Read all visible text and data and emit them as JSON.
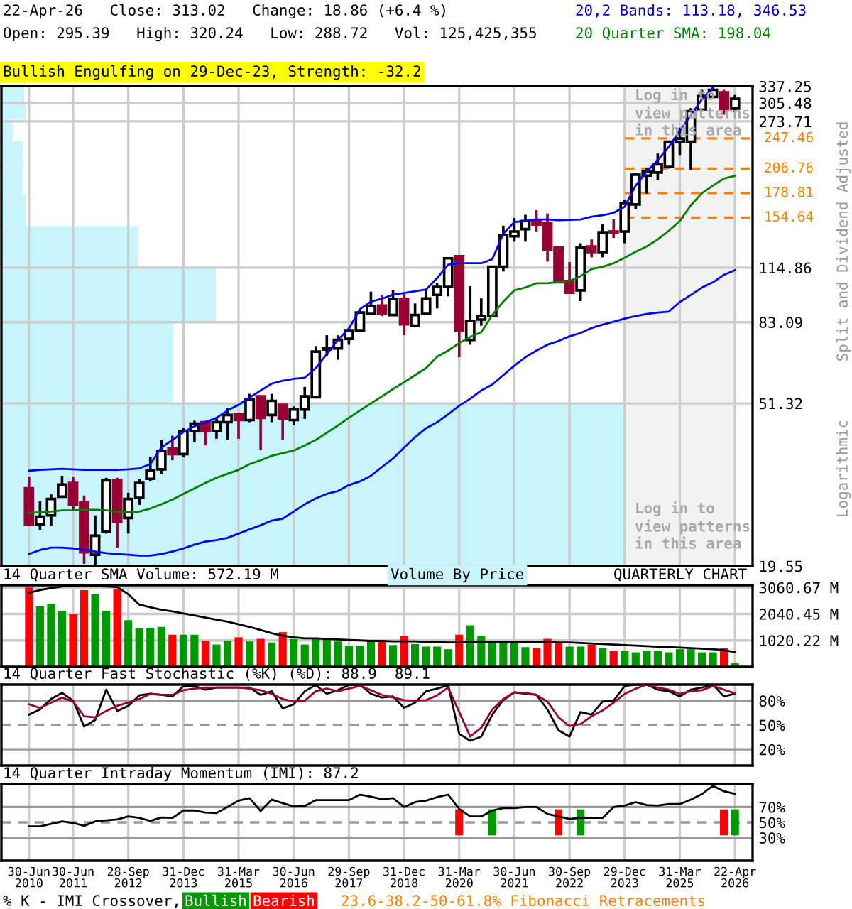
{
  "chart_data": [
    {
      "type": "candlestick",
      "log": true,
      "grid": true,
      "tick_labels": "y",
      "categories": [
        "30-Jun\n2010",
        null,
        null,
        null,
        "30-Jun\n2011",
        null,
        null,
        null,
        null,
        "28-Sep\n2012",
        null,
        null,
        null,
        null,
        "31-Dec\n2013",
        null,
        null,
        null,
        null,
        "31-Mar\n2015",
        null,
        null,
        null,
        null,
        "30-Jun\n2016",
        null,
        null,
        null,
        null,
        "29-Sep\n2017",
        null,
        null,
        null,
        null,
        "31-Dec\n2018",
        null,
        null,
        null,
        null,
        "31-Mar\n2020",
        null,
        null,
        null,
        null,
        "30-Jun\n2021",
        null,
        null,
        null,
        null,
        "30-Sep\n2022",
        null,
        null,
        null,
        null,
        "29-Dec\n2023",
        null,
        null,
        null,
        null,
        "31-Mar\n2025",
        null,
        null,
        null,
        null,
        "22-Apr\n2026"
      ],
      "ylim": [
        19.55,
        337.25
      ],
      "yticks": [
        19.55,
        51.32,
        83.09,
        114.86,
        273.71,
        305.48,
        337.25
      ],
      "ohlc": [
        [
          31.0,
          33.2,
          24.8,
          25.0
        ],
        [
          25.0,
          28.7,
          24.2,
          26.2
        ],
        [
          26.4,
          29.9,
          24.8,
          29.1
        ],
        [
          29.5,
          33.4,
          29.3,
          31.7
        ],
        [
          32.0,
          33.2,
          27.3,
          28.2
        ],
        [
          28.5,
          29.7,
          19.8,
          21.2
        ],
        [
          20.9,
          26.4,
          19.6,
          23.4
        ],
        [
          24.0,
          33.0,
          23.7,
          32.5
        ],
        [
          32.6,
          33.0,
          21.8,
          25.4
        ],
        [
          26.0,
          30.2,
          23.7,
          29.1
        ],
        [
          29.3,
          32.8,
          28.1,
          32.0
        ],
        [
          32.8,
          37.3,
          32.3,
          34.5
        ],
        [
          34.7,
          41.4,
          33.8,
          38.7
        ],
        [
          39.3,
          42.4,
          36.6,
          38.0
        ],
        [
          38.0,
          44.4,
          37.3,
          43.6
        ],
        [
          43.5,
          46.3,
          40.7,
          45.5
        ],
        [
          45.9,
          46.3,
          40.0,
          43.5
        ],
        [
          43.6,
          47.1,
          41.6,
          45.9
        ],
        [
          45.9,
          49.9,
          41.4,
          47.9
        ],
        [
          48.1,
          48.3,
          41.6,
          46.5
        ],
        [
          46.5,
          54.3,
          45.9,
          52.5
        ],
        [
          53.5,
          53.5,
          38.9,
          47.1
        ],
        [
          47.9,
          54.3,
          45.9,
          52.1
        ],
        [
          50.9,
          50.9,
          41.4,
          46.8
        ],
        [
          46.5,
          50.4,
          45.2,
          49.5
        ],
        [
          49.5,
          56.6,
          46.8,
          53.5
        ],
        [
          53.2,
          72.1,
          53.2,
          69.8
        ],
        [
          70.7,
          76.9,
          67.8,
          71.1
        ],
        [
          71.1,
          76.9,
          66.5,
          74.8
        ],
        [
          75.3,
          80.3,
          72.7,
          79.2
        ],
        [
          79.2,
          89.8,
          78.6,
          88.0
        ],
        [
          87.3,
          99.6,
          86.6,
          91.5
        ],
        [
          91.7,
          97.7,
          86.2,
          87.3
        ],
        [
          86.7,
          100.4,
          86.2,
          95.5
        ],
        [
          95.5,
          99.0,
          76.9,
          82.1
        ],
        [
          81.4,
          92.9,
          81.4,
          86.7
        ],
        [
          87.3,
          101.2,
          87.3,
          95.7
        ],
        [
          97.7,
          104.7,
          90.2,
          102.5
        ],
        [
          102.5,
          122.1,
          96.9,
          121.4
        ],
        [
          122.9,
          122.9,
          67.5,
          79.2
        ],
        [
          74.8,
          102.9,
          72.7,
          83.7
        ],
        [
          84.4,
          95.7,
          81.4,
          86.2
        ],
        [
          86.2,
          115.5,
          85.5,
          115.5
        ],
        [
          115.5,
          147.4,
          112.3,
          139.3
        ],
        [
          138.4,
          154.2,
          134.0,
          142.4
        ],
        [
          144.4,
          157.2,
          134.0,
          151.5
        ],
        [
          151.5,
          161.6,
          142.4,
          148.3
        ],
        [
          149.6,
          158.3,
          119.0,
          128.0
        ],
        [
          129.3,
          129.3,
          105.3,
          105.3
        ],
        [
          106.1,
          118.7,
          99.0,
          99.0
        ],
        [
          100.4,
          132.8,
          94.2,
          129.3
        ],
        [
          130.3,
          135.8,
          122.1,
          126.0
        ],
        [
          126.0,
          148.6,
          122.1,
          141.7
        ],
        [
          142.4,
          152.9,
          137.0,
          141.7
        ],
        [
          142.4,
          172.1,
          132.8,
          168.6
        ],
        [
          167.2,
          201.1,
          162.5,
          199.5
        ],
        [
          198.4,
          207.9,
          178.2,
          203.3
        ],
        [
          202.1,
          226.1,
          192.9,
          212.0
        ],
        [
          208.9,
          244.0,
          206.8,
          242.5
        ],
        [
          242.5,
          263.7,
          224.2,
          247.2
        ],
        [
          242.5,
          296.0,
          205.0,
          290.9
        ],
        [
          293.3,
          330.0,
          290.9,
          317.9
        ],
        [
          316.4,
          337.0,
          311.9,
          330.0
        ],
        [
          325.3,
          330.0,
          284.8,
          294.8
        ],
        [
          295.39,
          320.24,
          288.72,
          313.02
        ]
      ],
      "colors": [
        "#990033",
        "#ffffff",
        "#ffffff",
        "#ffffff",
        "#990033",
        "#990033",
        "#ffffff",
        "#ffffff",
        "#990033",
        "#ffffff",
        "#ffffff",
        "#ffffff",
        "#ffffff",
        "#990033",
        "#ffffff",
        "#ffffff",
        "#990033",
        "#ffffff",
        "#ffffff",
        "#990033",
        "#ffffff",
        "#990033",
        "#ffffff",
        "#990033",
        "#ffffff",
        "#ffffff",
        "#ffffff",
        "#ffffff",
        "#ffffff",
        "#ffffff",
        "#ffffff",
        "#ffffff",
        "#990033",
        "#ffffff",
        "#990033",
        "#ffffff",
        "#ffffff",
        "#ffffff",
        "#ffffff",
        "#990033",
        "#ffffff",
        "#ffffff",
        "#ffffff",
        "#ffffff",
        "#ffffff",
        "#ffffff",
        "#990033",
        "#990033",
        "#990033",
        "#990033",
        "#ffffff",
        "#990033",
        "#ffffff",
        "#990033",
        "#ffffff",
        "#ffffff",
        "#ffffff",
        "#ffffff",
        "#ffffff",
        "#ffffff",
        "#ffffff",
        "#ffffff",
        "#ffffff",
        "#990033",
        "#ffffff"
      ],
      "series": [
        {
          "type": "line",
          "color": "#0000ff",
          "values": [
            34.4,
            34.6,
            34.7,
            34.8,
            34.7,
            34.6,
            34.6,
            34.6,
            34.6,
            34.7,
            34.9,
            35.8,
            39.5,
            41.3,
            43.3,
            44.8,
            45.9,
            47.1,
            49.2,
            50.9,
            53.1,
            55.4,
            57.7,
            58.7,
            59.4,
            59.8,
            63.3,
            68.8,
            74.8,
            80.0,
            89.8,
            93.9,
            95.5,
            97.9,
            98.8,
            99.9,
            100.9,
            108.0,
            117.0,
            117.9,
            117.9,
            117.9,
            120.8,
            140.6,
            150.6,
            151.5,
            152.9,
            152.9,
            152.3,
            152.5,
            152.9,
            155.5,
            156.8,
            159.0,
            165.0,
            186.9,
            203.3,
            217.3,
            235.4,
            258.9,
            283.9,
            311.9,
            333.5,
            null,
            null
          ]
        },
        {
          "type": "line",
          "color": "#008000",
          "values": [
            26.8,
            26.9,
            27.0,
            27.2,
            27.2,
            27.3,
            27.3,
            27.2,
            27.0,
            26.9,
            27.0,
            27.5,
            28.2,
            29.0,
            30.0,
            31.0,
            32.0,
            33.0,
            33.8,
            34.6,
            35.8,
            36.6,
            37.6,
            38.2,
            38.8,
            40.0,
            41.3,
            43.1,
            45.0,
            47.1,
            49.2,
            51.3,
            53.5,
            55.9,
            58.2,
            60.7,
            63.3,
            67.7,
            70.2,
            73.4,
            76.1,
            78.3,
            86.7,
            93.9,
            100.4,
            102.1,
            104.7,
            104.7,
            105.5,
            106.1,
            109.2,
            113.9,
            115.5,
            117.9,
            121.8,
            126.3,
            130.3,
            135.8,
            143.0,
            151.5,
            166.4,
            178.7,
            186.9,
            195.0,
            198.04
          ]
        },
        {
          "type": "line",
          "color": "#0000ff",
          "values": [
            21.0,
            21.5,
            21.8,
            21.8,
            21.7,
            21.5,
            21.3,
            21.1,
            21.0,
            20.9,
            20.8,
            20.8,
            21.0,
            21.3,
            21.7,
            22.2,
            22.6,
            22.8,
            23.1,
            23.7,
            24.3,
            24.9,
            25.6,
            25.9,
            27.0,
            28.2,
            29.2,
            30.0,
            30.5,
            31.6,
            32.3,
            33.4,
            35.2,
            37.0,
            39.5,
            42.0,
            44.3,
            45.9,
            48.1,
            50.6,
            52.8,
            55.4,
            57.4,
            60.7,
            64.2,
            67.5,
            70.2,
            72.7,
            74.3,
            76.4,
            77.9,
            80.3,
            81.9,
            83.3,
            84.9,
            86.2,
            87.3,
            88.0,
            88.5,
            93.7,
            97.7,
            102.0,
            105.3,
            110.1,
            113.18
          ]
        }
      ],
      "ref_lines": [
        {
          "axis": "y",
          "value": 247.46,
          "label": "247.46",
          "color": "#ff8000",
          "line_style": "dashed"
        },
        {
          "axis": "y",
          "value": 206.76,
          "label": "206.76",
          "color": "#ff8000",
          "line_style": "dashed"
        },
        {
          "axis": "y",
          "value": 178.81,
          "label": "178.81",
          "color": "#ff8000",
          "line_style": "dashed"
        },
        {
          "axis": "y",
          "value": 154.64,
          "label": "154.64",
          "color": "#ff8000",
          "line_style": "dashed"
        }
      ],
      "bands": [
        {
          "axis": "x",
          "from": "29-Dec\n2023",
          "to": "22-Apr\n2026",
          "color": "#f2f2f2"
        }
      ],
      "annotations": [
        "22-Apr-26   Close: 313.02   Change: 18.86 (+6.4 %)",
        "Open: 295.39   High: 320.24   Low: 288.72   Vol: 125,425,355",
        "20,2 Bands: 113.18, 346.53",
        "20 Quarter SMA: 198.04",
        "Bullish Engulfing on 29-Dec-23, Strength: -32.2",
        "Log in to\nview patterns\nin this area",
        "Log in to\nview patterns\nin this area",
        "Split and Dividend Adjusted",
        "Logarithmic",
        "23.6-38.2-50-61.8% Fibonacci Retracements",
        "Volume By Price"
      ]
    },
    {
      "type": "bar",
      "title": "14 Quarter SMA Volume: 572.19 M",
      "grid": true,
      "tick_labels": "y",
      "categories": [
        "30-Jun\n2010",
        null,
        null,
        null,
        "30-Jun\n2011",
        null,
        null,
        null,
        null,
        "28-Sep\n2012",
        null,
        null,
        null,
        null,
        "31-Dec\n2013",
        null,
        null,
        null,
        null,
        "31-Mar\n2015",
        null,
        null,
        null,
        null,
        "30-Jun\n2016",
        null,
        null,
        null,
        null,
        "29-Sep\n2017",
        null,
        null,
        null,
        null,
        "31-Dec\n2018",
        null,
        null,
        null,
        null,
        "31-Mar\n2020",
        null,
        null,
        null,
        null,
        "30-Jun\n2021",
        null,
        null,
        null,
        null,
        "30-Sep\n2022",
        null,
        null,
        null,
        null,
        "29-Dec\n2023",
        null,
        null,
        null,
        null,
        "31-Mar\n2025",
        null,
        null,
        null,
        null,
        "22-Apr\n2026"
      ],
      "ylim": [
        0,
        3150
      ],
      "yticks": [
        {
          "value": 1020.22,
          "label": "1020.22 M"
        },
        {
          "value": 2040.45,
          "label": "2040.45 M"
        },
        {
          "value": 3060.67,
          "label": "3060.67 M"
        }
      ],
      "series": [
        {
          "type": "bar",
          "values": [
            3060,
            2340,
            2440,
            2160,
            2040,
            2960,
            2800,
            2160,
            3000,
            1800,
            1500,
            1500,
            1540,
            1240,
            1240,
            1240,
            1000,
            860,
            1000,
            1140,
            980,
            1080,
            940,
            1340,
            1080,
            860,
            1120,
            1100,
            980,
            820,
            820,
            1000,
            1000,
            840,
            1180,
            880,
            780,
            780,
            680,
            1240,
            1600,
            1180,
            940,
            940,
            940,
            760,
            720,
            1080,
            940,
            780,
            780,
            860,
            720,
            620,
            620,
            560,
            620,
            620,
            560,
            680,
            680,
            560,
            560,
            720,
            140
          ],
          "colors": [
            "#ff0000",
            "#009900",
            "#009900",
            "#009900",
            "#ff0000",
            "#ff0000",
            "#009900",
            "#009900",
            "#ff0000",
            "#009900",
            "#009900",
            "#009900",
            "#009900",
            "#ff0000",
            "#009900",
            "#009900",
            "#ff0000",
            "#009900",
            "#009900",
            "#ff0000",
            "#009900",
            "#ff0000",
            "#009900",
            "#ff0000",
            "#009900",
            "#009900",
            "#009900",
            "#009900",
            "#009900",
            "#009900",
            "#009900",
            "#009900",
            "#ff0000",
            "#009900",
            "#ff0000",
            "#009900",
            "#009900",
            "#009900",
            "#009900",
            "#ff0000",
            "#009900",
            "#009900",
            "#009900",
            "#009900",
            "#009900",
            "#009900",
            "#ff0000",
            "#ff0000",
            "#ff0000",
            "#009900",
            "#009900",
            "#ff0000",
            "#009900",
            "#ff0000",
            "#009900",
            "#009900",
            "#009900",
            "#009900",
            "#009900",
            "#009900",
            "#009900",
            "#009900",
            "#009900",
            "#ff0000",
            "#009900"
          ]
        },
        {
          "type": "line",
          "color": "#000000",
          "values": [
            2860,
            2960,
            3040,
            3100,
            3120,
            3120,
            3110,
            3100,
            3080,
            2800,
            2400,
            2300,
            2200,
            2140,
            2060,
            1980,
            1900,
            1820,
            1740,
            1640,
            1540,
            1420,
            1300,
            1200,
            1140,
            1100,
            1100,
            1080,
            1060,
            1040,
            1020,
            1000,
            1000,
            980,
            980,
            980,
            960,
            960,
            940,
            940,
            960,
            960,
            960,
            960,
            960,
            960,
            960,
            960,
            940,
            940,
            920,
            900,
            880,
            860,
            840,
            820,
            800,
            780,
            760,
            740,
            720,
            700,
            680,
            640,
            572.19
          ]
        }
      ],
      "annotations": [
        "QUARTERLY CHART"
      ]
    },
    {
      "type": "line",
      "title": "14 Quarter Fast Stochastic (%K) (%D): 88.9  89.1",
      "grid": "x",
      "tick_labels": "y",
      "categories": [
        "30-Jun\n2010",
        null,
        null,
        null,
        "30-Jun\n2011",
        null,
        null,
        null,
        null,
        "28-Sep\n2012",
        null,
        null,
        null,
        null,
        "31-Dec\n2013",
        null,
        null,
        null,
        null,
        "31-Mar\n2015",
        null,
        null,
        null,
        null,
        "30-Jun\n2016",
        null,
        null,
        null,
        null,
        "29-Sep\n2017",
        null,
        null,
        null,
        null,
        "31-Dec\n2018",
        null,
        null,
        null,
        null,
        "31-Mar\n2020",
        null,
        null,
        null,
        null,
        "30-Jun\n2021",
        null,
        null,
        null,
        null,
        "30-Sep\n2022",
        null,
        null,
        null,
        null,
        "29-Dec\n2023",
        null,
        null,
        null,
        null,
        "31-Mar\n2025",
        null,
        null,
        null,
        null,
        "22-Apr\n2026"
      ],
      "ylim": [
        0,
        100
      ],
      "yticks": [
        {
          "value": 20,
          "label": "20%"
        },
        {
          "value": 50,
          "label": "50%"
        },
        {
          "value": 80,
          "label": "80%"
        }
      ],
      "ref_lines": [
        {
          "axis": "y",
          "value": 80,
          "color": "#999999"
        },
        {
          "axis": "y",
          "value": 50,
          "color": "#999999",
          "line_style": "dashed"
        },
        {
          "axis": "y",
          "value": 20,
          "color": "#999999"
        }
      ],
      "series": [
        {
          "color": "#000000",
          "values": [
            62.9,
            69.3,
            82.2,
            89.9,
            80.2,
            48.1,
            56.4,
            93.8,
            67.4,
            73.8,
            86.7,
            88.6,
            87.3,
            85.4,
            98.3,
            98.3,
            93.8,
            96.3,
            96.3,
            96.3,
            96.3,
            87.3,
            91.8,
            70.6,
            75.7,
            91.8,
            99.5,
            88.6,
            93.1,
            99.5,
            100,
            88.6,
            84.1,
            85.4,
            71.2,
            77.7,
            91.8,
            95.0,
            99.5,
            39.1,
            30.7,
            35.8,
            62.9,
            80.9,
            90.5,
            88.6,
            87.3,
            69.3,
            43.6,
            35.8,
            66.1,
            62.9,
            79.0,
            80.2,
            98.3,
            100,
            100,
            93.8,
            91.8,
            85.4,
            93.8,
            96.3,
            100,
            85.4,
            88.9
          ]
        },
        {
          "color": "#990033",
          "values": [
            75.7,
            71.2,
            77.7,
            84.1,
            79.0,
            60.9,
            59.6,
            67.4,
            73.8,
            77.7,
            82.2,
            88.6,
            87.3,
            87.3,
            93.1,
            95.0,
            96.3,
            96.3,
            96.3,
            96.3,
            95.0,
            93.1,
            88.6,
            82.2,
            79.0,
            80.2,
            91.8,
            95.0,
            91.8,
            95.0,
            98.3,
            93.1,
            87.3,
            84.1,
            80.9,
            80.2,
            80.9,
            86.7,
            96.3,
            66.1,
            35.8,
            46.8,
            69.3,
            82.2,
            90.5,
            89.9,
            87.3,
            79.0,
            59.6,
            48.7,
            51.3,
            60.9,
            68.1,
            77.7,
            88.6,
            95.0,
            100,
            96.3,
            93.8,
            88.6,
            91.8,
            93.1,
            98.3,
            93.8,
            89.1
          ]
        }
      ]
    },
    {
      "type": "line",
      "title": "14 Quarter Intraday Momentum (IMI): 87.2",
      "grid": "x",
      "legend": "bottom",
      "categories": [
        "30-Jun\n2010",
        null,
        null,
        null,
        "30-Jun\n2011",
        null,
        null,
        null,
        null,
        "28-Sep\n2012",
        null,
        null,
        null,
        null,
        "31-Dec\n2013",
        null,
        null,
        null,
        null,
        "31-Mar\n2015",
        null,
        null,
        null,
        null,
        "30-Jun\n2016",
        null,
        null,
        null,
        null,
        "29-Sep\n2017",
        null,
        null,
        null,
        null,
        "31-Dec\n2018",
        null,
        null,
        null,
        null,
        "31-Mar\n2020",
        null,
        null,
        null,
        null,
        "30-Jun\n2021",
        null,
        null,
        null,
        null,
        "30-Sep\n2022",
        null,
        null,
        null,
        null,
        "29-Dec\n2023",
        null,
        null,
        null,
        null,
        "31-Mar\n2025",
        null,
        null,
        null,
        null,
        "22-Apr\n2026"
      ],
      "ylim": [
        0,
        100
      ],
      "yticks": [
        {
          "value": 30,
          "label": "30%"
        },
        {
          "value": 50,
          "label": "50%"
        },
        {
          "value": 70,
          "label": "70%"
        }
      ],
      "ref_lines": [
        {
          "axis": "y",
          "value": 70,
          "color": "#999999"
        },
        {
          "axis": "y",
          "value": 50,
          "color": "#999999",
          "line_style": "dashed"
        },
        {
          "axis": "y",
          "value": 30,
          "color": "#999999"
        }
      ],
      "series": [
        {
          "color": "#000000",
          "values": [
            44.8,
            44.8,
            48.1,
            51.3,
            49.3,
            45.5,
            51.3,
            52.6,
            53.9,
            57.7,
            55.8,
            51.9,
            56.4,
            55.8,
            65.5,
            65.5,
            62.9,
            62.2,
            70,
            78.4,
            81.6,
            64.8,
            79.7,
            75.1,
            70.6,
            71.3,
            79.0,
            79.0,
            79.0,
            79.0,
            86.1,
            83.5,
            80.3,
            81.6,
            70,
            76.4,
            78.4,
            82.9,
            86.1,
            67.4,
            57.7,
            57.7,
            65.5,
            68.7,
            68.7,
            70,
            70,
            61,
            57.7,
            54.5,
            55.8,
            55.8,
            55.8,
            70,
            71.9,
            76.4,
            72.6,
            71.9,
            73.9,
            73.9,
            79.7,
            86.8,
            97.7,
            90.6,
            87.2
          ]
        },
        {
          "type": "bar",
          "name": "Bullish",
          "color": "#009900",
          "values": [
            null,
            null,
            null,
            null,
            null,
            null,
            null,
            null,
            null,
            null,
            null,
            null,
            null,
            null,
            null,
            null,
            null,
            null,
            null,
            null,
            null,
            null,
            null,
            null,
            null,
            null,
            null,
            null,
            null,
            null,
            null,
            null,
            null,
            null,
            null,
            null,
            null,
            null,
            null,
            null,
            null,
            null,
            34,
            null,
            null,
            null,
            null,
            null,
            null,
            null,
            34,
            null,
            null,
            null,
            null,
            null,
            null,
            null,
            null,
            null,
            null,
            null,
            null,
            null,
            34
          ],
          "base": [
            null,
            null,
            null,
            null,
            null,
            null,
            null,
            null,
            null,
            null,
            null,
            null,
            null,
            null,
            null,
            null,
            null,
            null,
            null,
            null,
            null,
            null,
            null,
            null,
            null,
            null,
            null,
            null,
            null,
            null,
            null,
            null,
            null,
            null,
            null,
            null,
            null,
            null,
            null,
            null,
            null,
            null,
            33,
            null,
            null,
            null,
            null,
            null,
            null,
            null,
            33,
            null,
            null,
            null,
            null,
            null,
            null,
            null,
            null,
            null,
            null,
            null,
            null,
            null,
            33
          ]
        },
        {
          "type": "bar",
          "name": "Bearish",
          "color": "#ff0000",
          "values": [
            null,
            null,
            null,
            null,
            null,
            null,
            null,
            null,
            null,
            null,
            null,
            null,
            null,
            null,
            null,
            null,
            null,
            null,
            null,
            null,
            null,
            null,
            null,
            null,
            null,
            null,
            null,
            null,
            null,
            null,
            null,
            null,
            null,
            null,
            null,
            null,
            null,
            null,
            null,
            34,
            null,
            null,
            null,
            null,
            null,
            null,
            null,
            null,
            34,
            null,
            null,
            null,
            null,
            null,
            null,
            null,
            null,
            null,
            null,
            null,
            null,
            null,
            null,
            34,
            null
          ],
          "base": [
            null,
            null,
            null,
            null,
            null,
            null,
            null,
            null,
            null,
            null,
            null,
            null,
            null,
            null,
            null,
            null,
            null,
            null,
            null,
            null,
            null,
            null,
            null,
            null,
            null,
            null,
            null,
            null,
            null,
            null,
            null,
            null,
            null,
            null,
            null,
            null,
            null,
            null,
            null,
            33,
            null,
            null,
            null,
            null,
            null,
            null,
            null,
            null,
            33,
            null,
            null,
            null,
            null,
            null,
            null,
            null,
            null,
            null,
            null,
            null,
            null,
            null,
            null,
            33,
            null
          ]
        }
      ],
      "annotations": [
        "% K - IMI Crossover,"
      ]
    }
  ]
}
